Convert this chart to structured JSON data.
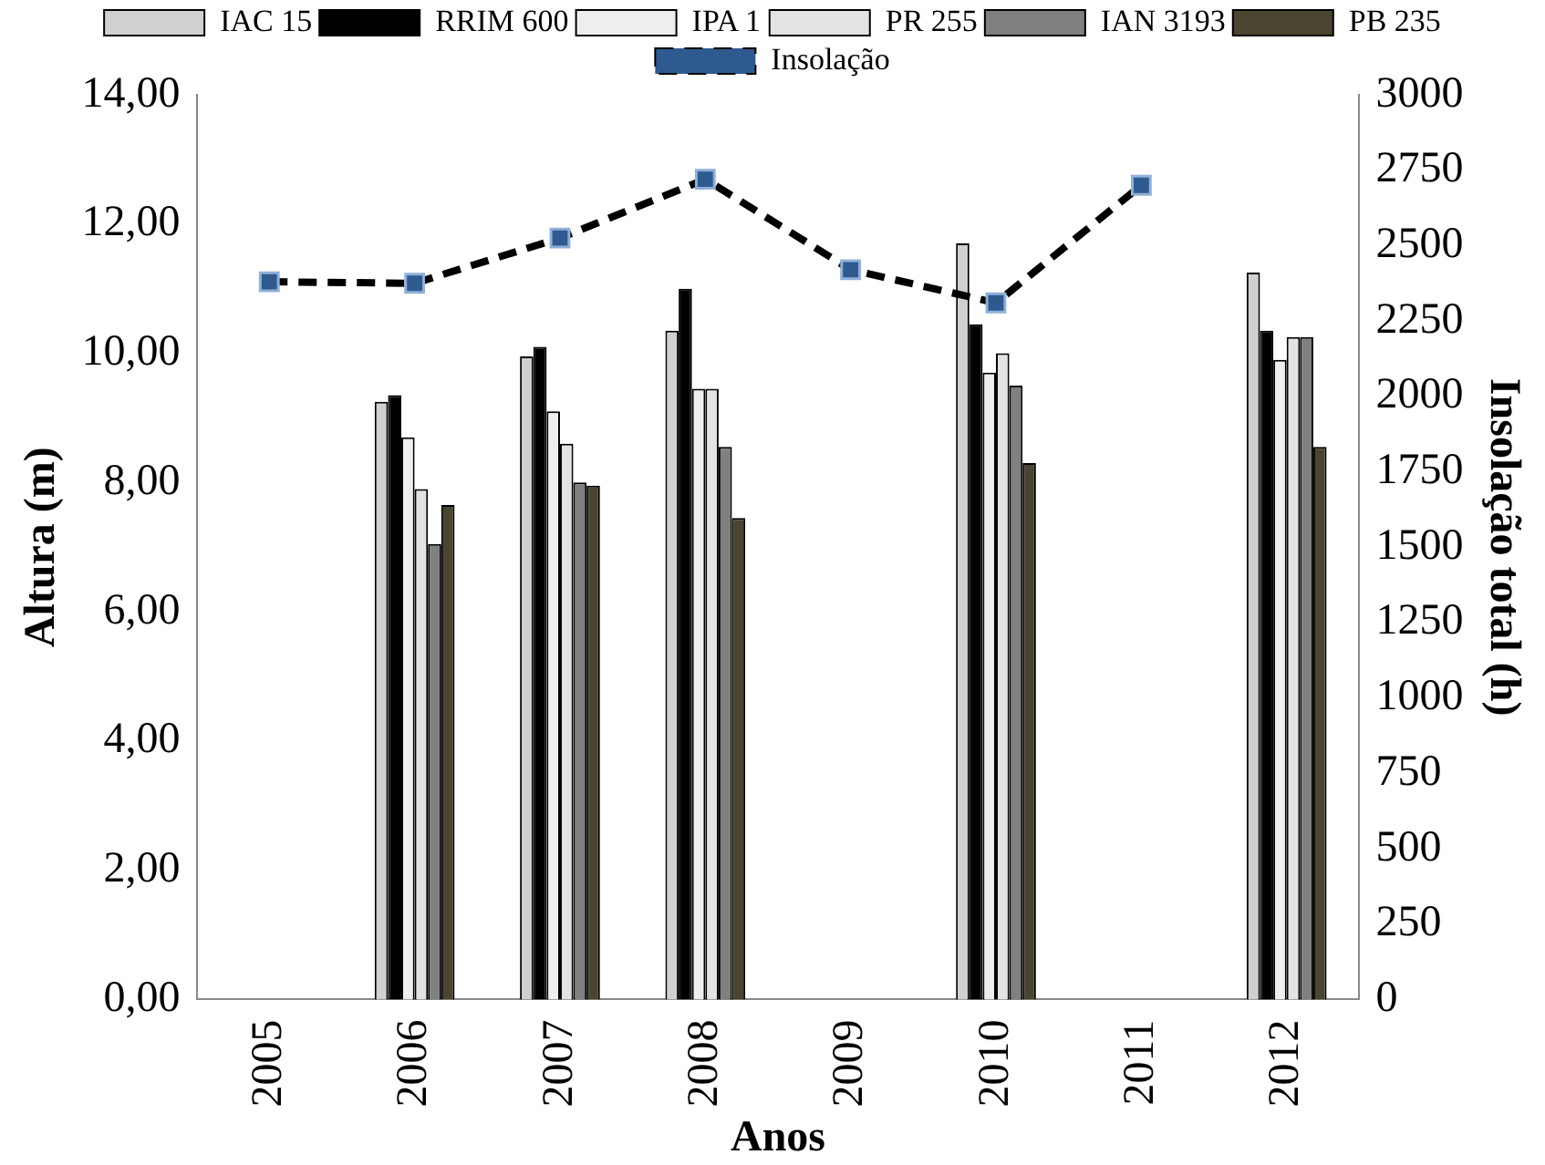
{
  "chart_data": {
    "type": "bar",
    "xlabel": "Anos",
    "ylabel": "Altura (m)",
    "y2label": "Insolação total (h)",
    "categories": [
      "2005",
      "2006",
      "2007",
      "2008",
      "2009",
      "2010",
      "2011",
      "2012"
    ],
    "series": [
      {
        "name": "IAC 15",
        "color": "#d0d0d0",
        "values": [
          null,
          9.25,
          9.95,
          10.35,
          null,
          11.7,
          null,
          11.25
        ]
      },
      {
        "name": "RRIM 600",
        "color": "#000000",
        "values": [
          null,
          9.35,
          10.1,
          11.0,
          null,
          10.45,
          null,
          10.35
        ]
      },
      {
        "name": "IPA 1",
        "color": "#eeeeee",
        "values": [
          null,
          8.7,
          9.1,
          9.45,
          null,
          9.7,
          null,
          9.9
        ]
      },
      {
        "name": "PR 255",
        "color": "#e3e3e3",
        "values": [
          null,
          7.9,
          8.6,
          9.45,
          null,
          10.0,
          null,
          10.25
        ]
      },
      {
        "name": "IAN 3193",
        "color": "#808080",
        "values": [
          null,
          7.05,
          8.0,
          8.55,
          null,
          9.5,
          null,
          10.25
        ]
      },
      {
        "name": "PB 235",
        "color": "#4a4530",
        "values": [
          null,
          7.65,
          7.95,
          7.45,
          null,
          8.3,
          null,
          8.55
        ]
      },
      {
        "name": "Insolação",
        "type": "line",
        "axis": "y2",
        "color": "#2e5a8f",
        "marker": "square",
        "line_style": "dashed",
        "values": [
          2380,
          2375,
          2525,
          2720,
          2420,
          2310,
          2700,
          null
        ]
      }
    ],
    "ylim": [
      0,
      14
    ],
    "yticks": [
      {
        "value": 0,
        "label": "0,00"
      },
      {
        "value": 2,
        "label": "2,00"
      },
      {
        "value": 4,
        "label": "4,00"
      },
      {
        "value": 6,
        "label": "6,00"
      },
      {
        "value": 8,
        "label": "8,00"
      },
      {
        "value": 10,
        "label": "10,00"
      },
      {
        "value": 12,
        "label": "12,00"
      },
      {
        "value": 14,
        "label": "14,00"
      }
    ],
    "y2lim": [
      0,
      3000
    ],
    "y2ticks": [
      0,
      250,
      500,
      750,
      1000,
      1250,
      1500,
      1750,
      2000,
      2250,
      2500,
      2750,
      3000
    ],
    "legend": "top",
    "grid": false
  }
}
